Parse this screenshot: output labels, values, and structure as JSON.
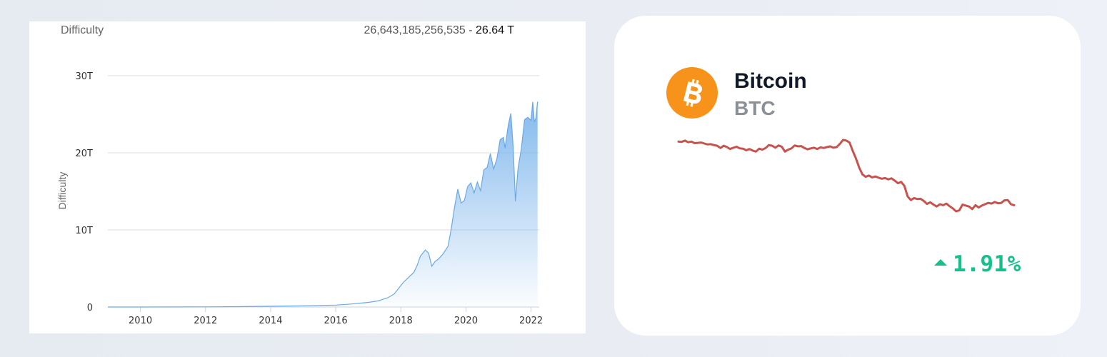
{
  "chart_data": {
    "type": "area",
    "title": "Difficulty",
    "ylabel": "Difficulty",
    "xlabel": "",
    "current_value": "26,643,185,256,535",
    "current_value_short": "26.64 T",
    "x_ticks": [
      "2010",
      "2012",
      "2014",
      "2016",
      "2018",
      "2020",
      "2022"
    ],
    "y_ticks": [
      "0",
      "10T",
      "20T",
      "30T"
    ],
    "xlim": [
      2009.0,
      2022.25
    ],
    "ylim": [
      0,
      30
    ],
    "y_unit": "T",
    "grid": true,
    "color": "#7cb5ec",
    "series": [
      {
        "x": [
          2009.0,
          2010.0,
          2011.0,
          2012.0,
          2013.0,
          2014.0,
          2015.0,
          2016.0,
          2016.5,
          2017.0,
          2017.3,
          2017.6,
          2017.8,
          2018.0,
          2018.1,
          2018.25,
          2018.4,
          2018.5,
          2018.6,
          2018.75,
          2018.85,
          2018.95,
          2019.05,
          2019.15,
          2019.3,
          2019.45,
          2019.55,
          2019.65,
          2019.75,
          2019.85,
          2019.95,
          2020.05,
          2020.15,
          2020.25,
          2020.35,
          2020.45,
          2020.55,
          2020.65,
          2020.75,
          2020.85,
          2020.95,
          2021.05,
          2021.15,
          2021.2,
          2021.3,
          2021.38,
          2021.45,
          2021.52,
          2021.6,
          2021.7,
          2021.8,
          2021.9,
          2022.0,
          2022.05,
          2022.1,
          2022.15,
          2022.2
        ],
        "y": [
          0,
          0,
          0.01,
          0.02,
          0.05,
          0.1,
          0.15,
          0.25,
          0.4,
          0.6,
          0.8,
          1.2,
          1.7,
          2.8,
          3.3,
          3.9,
          4.5,
          5.4,
          6.6,
          7.4,
          7.0,
          5.3,
          5.9,
          6.2,
          6.9,
          7.9,
          10.2,
          13.0,
          15.3,
          13.5,
          13.8,
          15.6,
          16.1,
          14.8,
          16.2,
          15.1,
          17.8,
          18.1,
          19.9,
          17.9,
          19.2,
          21.7,
          22.0,
          20.6,
          23.6,
          25.1,
          20.8,
          13.7,
          18.0,
          20.5,
          24.3,
          24.6,
          24.2,
          26.6,
          24.0,
          24.5,
          26.64
        ]
      }
    ]
  },
  "coin": {
    "name": "Bitcoin",
    "symbol": "BTC",
    "change_pct": "1.91%",
    "change_direction": "up",
    "icon": "bitcoin-icon",
    "icon_color": "#f7931a",
    "line_color": "#c8534d",
    "change_color": "#16c08c",
    "sparkline": [
      42.3,
      42.2,
      42.6,
      42.1,
      42.3,
      41.8,
      41.9,
      42.0,
      41.7,
      41.4,
      41.5,
      41.2,
      41.0,
      40.3,
      41.0,
      40.6,
      40.0,
      40.4,
      40.7,
      40.2,
      40.1,
      39.6,
      40.0,
      39.5,
      39.2,
      40.1,
      39.8,
      40.3,
      41.2,
      41.0,
      40.4,
      41.1,
      40.7,
      39.2,
      39.8,
      40.2,
      41.1,
      40.8,
      40.9,
      40.3,
      39.9,
      40.2,
      40.4,
      40.0,
      40.5,
      40.3,
      40.6,
      40.8,
      40.4,
      40.6,
      41.6,
      42.8,
      42.6,
      42.0,
      39.4,
      37.0,
      34.2,
      32.1,
      31.4,
      31.8,
      31.2,
      31.5,
      31.1,
      30.8,
      31.0,
      30.6,
      30.9,
      30.2,
      29.4,
      29.8,
      28.6,
      25.3,
      24.2,
      24.8,
      24.5,
      24.6,
      23.9,
      23.0,
      23.5,
      22.8,
      22.2,
      22.9,
      22.6,
      23.1,
      22.3,
      21.6,
      20.7,
      21.0,
      22.8,
      22.5,
      22.2,
      21.4,
      22.6,
      21.9,
      22.5,
      22.9,
      23.3,
      23.1,
      23.6,
      23.2,
      23.3,
      24.1,
      24.2,
      22.9,
      22.6
    ]
  }
}
